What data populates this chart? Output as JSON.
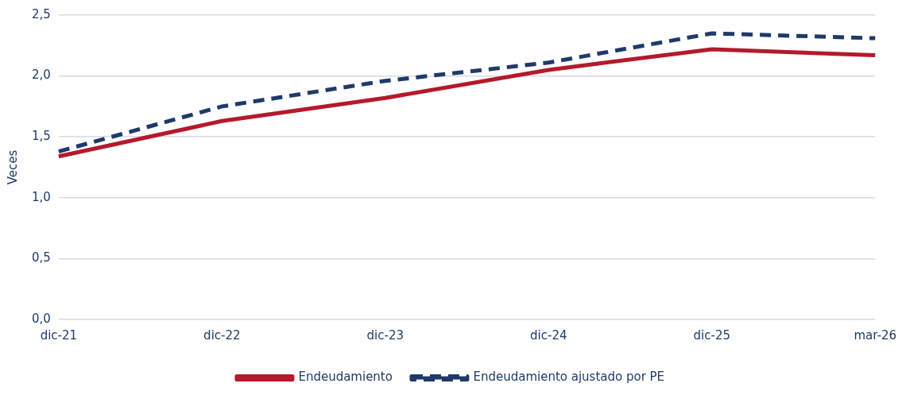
{
  "chart_data": {
    "type": "line",
    "ylabel": "Veces",
    "categories": [
      "dic-21",
      "dic-22",
      "dic-23",
      "dic-24",
      "dic-25",
      "mar-26"
    ],
    "series": [
      {
        "name": "Endeudamiento",
        "color": "#b5192b",
        "values": [
          1.34,
          1.63,
          1.82,
          2.05,
          2.22,
          2.17
        ],
        "line_style": "solid"
      },
      {
        "name": "Endeudamiento ajustado por PE",
        "color": "#1f3a6a",
        "values": [
          1.38,
          1.75,
          1.96,
          2.11,
          2.35,
          2.31
        ],
        "line_style": "dashed"
      }
    ],
    "ylim": [
      0,
      2.5
    ],
    "yticks": [
      {
        "value": 0,
        "label": "0,0"
      },
      {
        "value": 0.5,
        "label": "0,5"
      },
      {
        "value": 1,
        "label": "1,0"
      },
      {
        "value": 1.5,
        "label": "1,5"
      },
      {
        "value": 2,
        "label": "2,0"
      },
      {
        "value": 2.5,
        "label": "2,5"
      }
    ],
    "grid": "y",
    "legend": "bottom",
    "marker": "none"
  }
}
